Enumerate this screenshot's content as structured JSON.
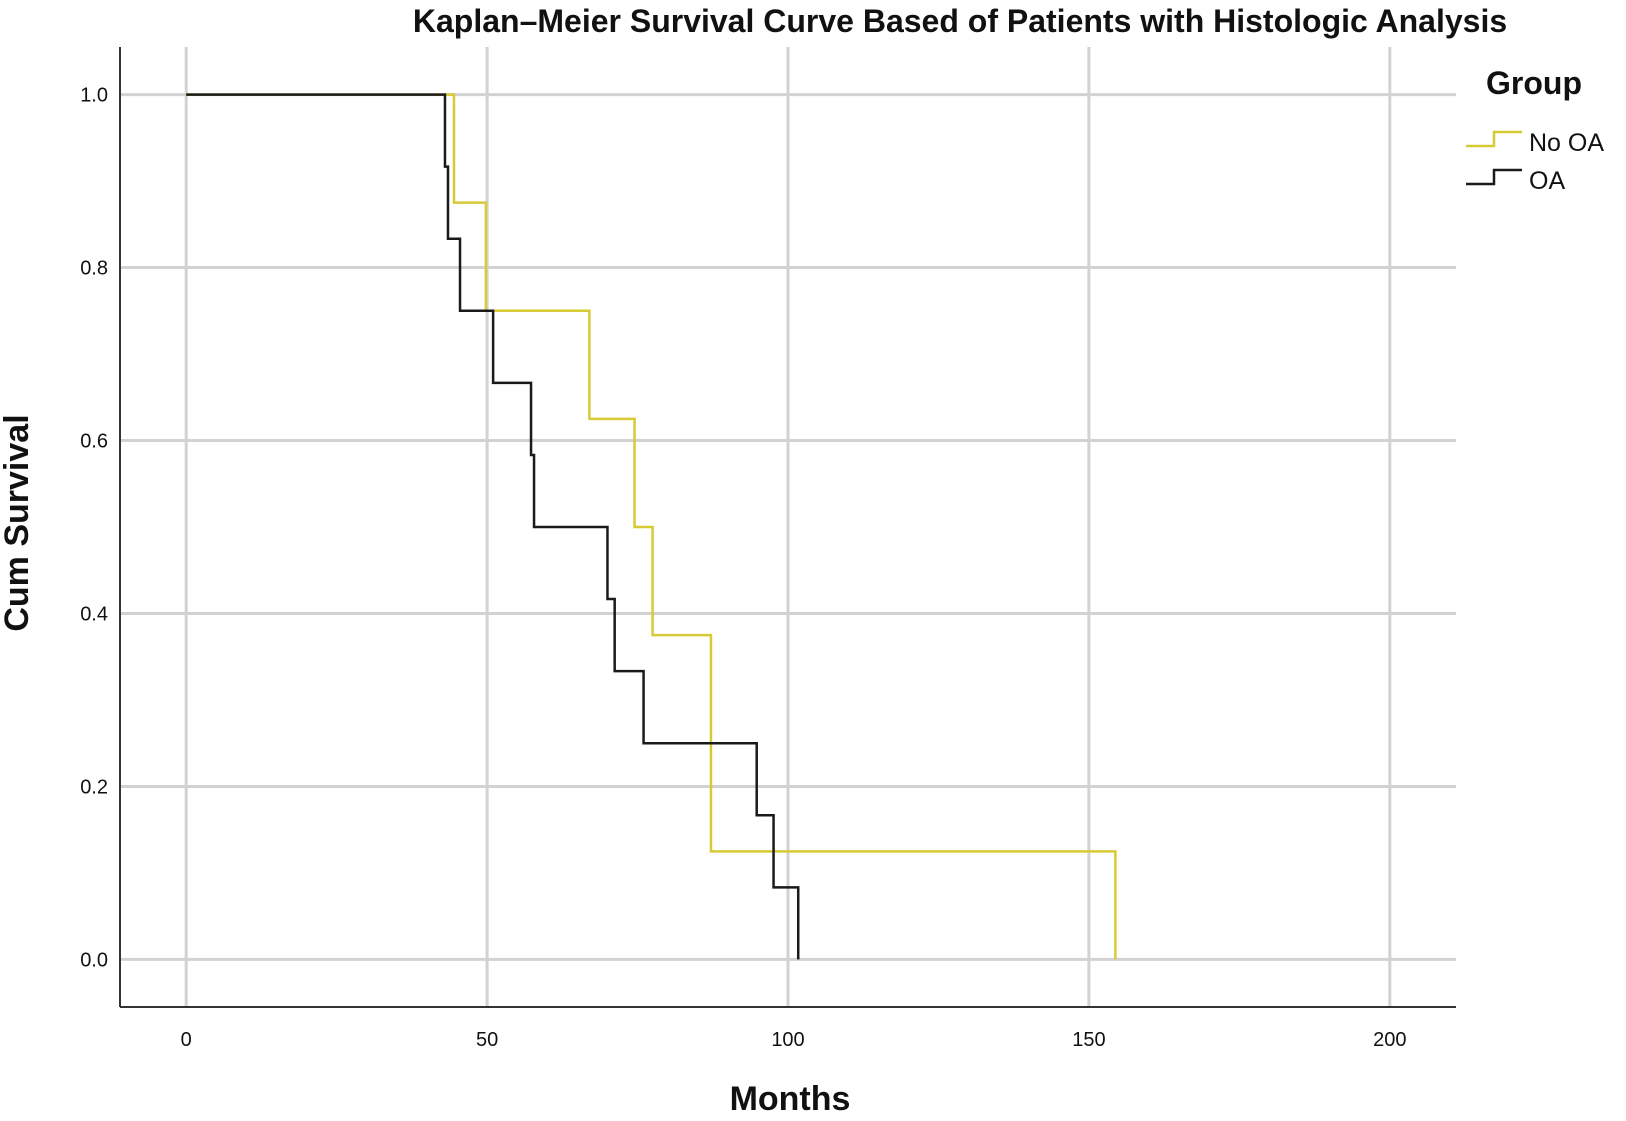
{
  "chart_data": {
    "type": "line",
    "title": "Kaplan–Meier Survival Curve Based of Patients with Histologic Analysis",
    "xlabel": "Months",
    "ylabel": "Cum Survival",
    "xlim": [
      -11,
      211
    ],
    "ylim": [
      -0.055,
      1.055
    ],
    "x_ticks": [
      0,
      50,
      100,
      150,
      200
    ],
    "y_ticks": [
      0.0,
      0.2,
      0.4,
      0.6,
      0.8,
      1.0
    ],
    "x_tick_labels": [
      "0",
      "50",
      "100",
      "150",
      "200"
    ],
    "y_tick_labels": [
      "0.0",
      "0.2",
      "0.4",
      "0.6",
      "0.8",
      "1.0"
    ],
    "grid": true,
    "legend": {
      "title": "Group",
      "position": "top-right"
    },
    "step": "post",
    "series": [
      {
        "name": "No OA",
        "color": "#d7cb35",
        "x": [
          0,
          44.5,
          49.8,
          67.0,
          74.5,
          77.5,
          87.2,
          154.4
        ],
        "y": [
          1.0,
          0.875,
          0.75,
          0.625,
          0.5,
          0.375,
          0.125,
          0.0
        ]
      },
      {
        "name": "OA",
        "color": "#1a1a1a",
        "x": [
          0,
          43.0,
          43.5,
          45.5,
          51.0,
          57.3,
          57.8,
          70.0,
          71.2,
          76.0,
          94.8,
          97.6,
          101.7
        ],
        "y": [
          1.0,
          0.9167,
          0.8333,
          0.75,
          0.6667,
          0.5833,
          0.5,
          0.4167,
          0.3333,
          0.25,
          0.1667,
          0.0833,
          0.0
        ]
      }
    ]
  }
}
